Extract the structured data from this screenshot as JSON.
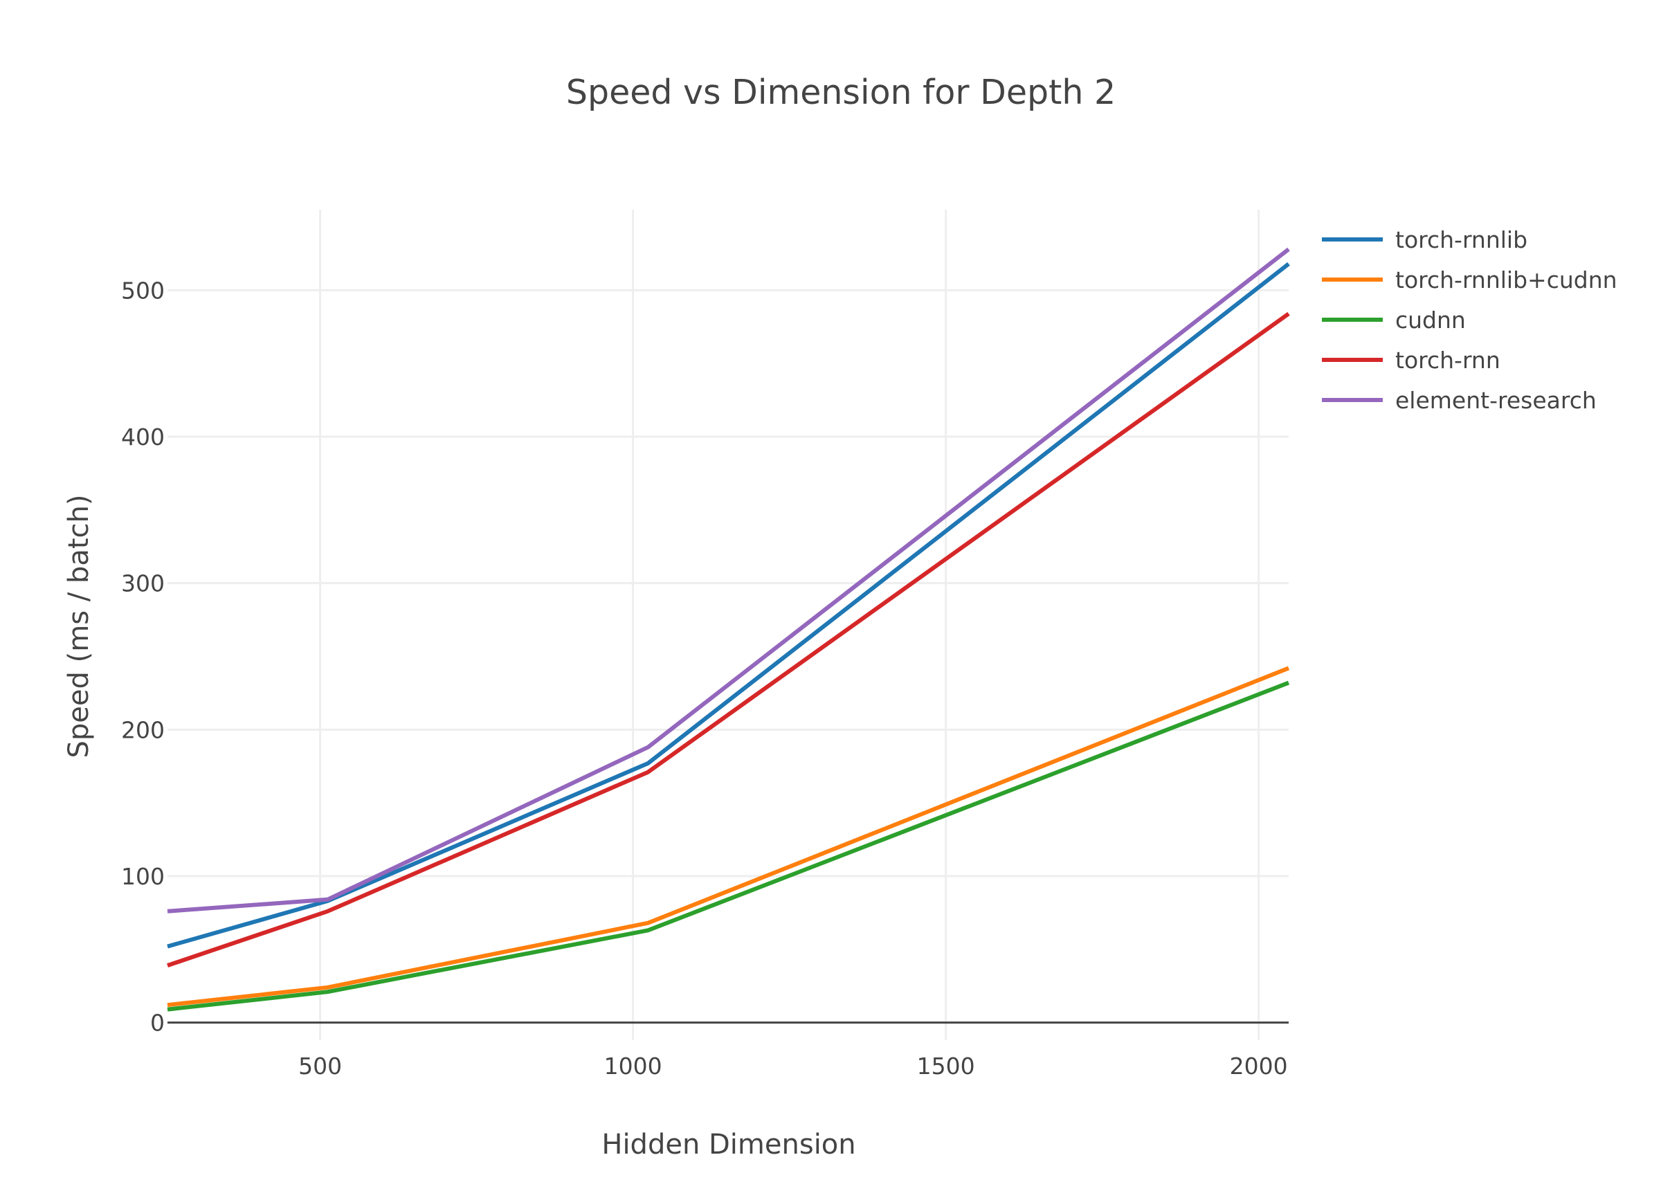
{
  "chart_data": {
    "type": "line",
    "title": "Speed vs Dimension for Depth 2",
    "xlabel": "Hidden Dimension",
    "ylabel": "Speed (ms / batch)",
    "xlim": [
      256,
      2048
    ],
    "ylim": [
      -12,
      555
    ],
    "xticks": [
      500,
      1000,
      1500,
      2000
    ],
    "yticks": [
      0,
      100,
      200,
      300,
      400,
      500
    ],
    "grid": true,
    "legend_position": "top-right",
    "x": [
      256,
      512,
      1024,
      2048
    ],
    "series": [
      {
        "name": "torch-rnnlib",
        "color": "#1f77b4",
        "values": [
          52,
          83,
          177,
          518
        ]
      },
      {
        "name": "torch-rnnlib+cudnn",
        "color": "#ff7f0e",
        "values": [
          12,
          24,
          68,
          242
        ]
      },
      {
        "name": "cudnn",
        "color": "#2ca02c",
        "values": [
          9,
          21,
          63,
          232
        ]
      },
      {
        "name": "torch-rnn",
        "color": "#d62728",
        "values": [
          39,
          76,
          171,
          484
        ]
      },
      {
        "name": "element-research",
        "color": "#9467bd",
        "values": [
          76,
          84,
          188,
          528
        ]
      }
    ]
  }
}
